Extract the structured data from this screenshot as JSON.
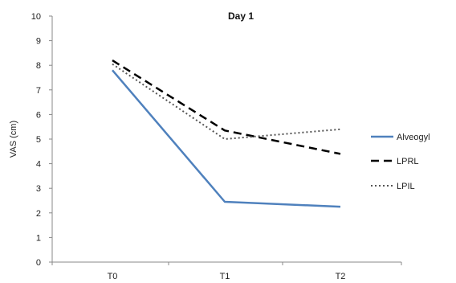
{
  "chart_data": {
    "type": "line",
    "title": "Day 1",
    "xlabel": "",
    "ylabel": "VAS (cm)",
    "categories": [
      "T0",
      "T1",
      "T2"
    ],
    "ylim": [
      0,
      10
    ],
    "yticks": [
      0,
      1,
      2,
      3,
      4,
      5,
      6,
      7,
      8,
      9,
      10
    ],
    "grid": false,
    "legend": "right",
    "series": [
      {
        "name": "Alveogyl",
        "values": [
          7.8,
          2.45,
          2.25
        ],
        "color": "#4F81BD",
        "style": "solid"
      },
      {
        "name": "LPRL",
        "values": [
          8.2,
          5.35,
          4.4
        ],
        "color": "#000000",
        "style": "dashed"
      },
      {
        "name": "LPIL",
        "values": [
          8.05,
          5.0,
          5.4
        ],
        "color": "#555555",
        "style": "dotted"
      }
    ]
  }
}
